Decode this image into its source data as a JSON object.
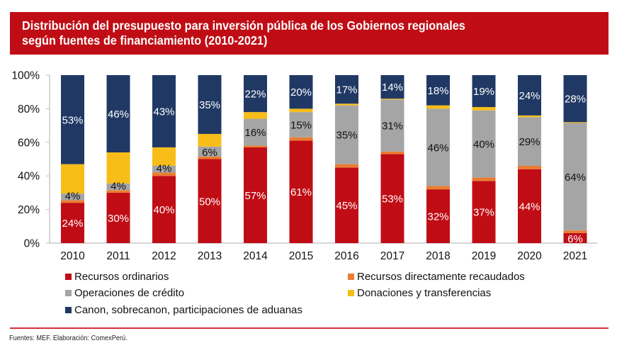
{
  "header": {
    "title_line1": "Distribución del presupuesto para inversión pública de los Gobiernos regionales",
    "title_line2": "según fuentes de financiamiento (2010-2021)"
  },
  "colors": {
    "banner": "#c00d15",
    "rule": "#d3313b"
  },
  "chart_data": {
    "type": "bar",
    "stacked": true,
    "normalized": true,
    "title": "Distribución del presupuesto para inversión pública de los Gobiernos regionales según fuentes de financiamiento (2010-2021)",
    "xlabel": "",
    "ylabel": "",
    "ylim": [
      0,
      100
    ],
    "yticks": [
      "0%",
      "20%",
      "40%",
      "60%",
      "80%",
      "100%"
    ],
    "grid": false,
    "legend_position": "bottom",
    "categories": [
      "2010",
      "2011",
      "2012",
      "2013",
      "2014",
      "2015",
      "2016",
      "2017",
      "2018",
      "2019",
      "2020",
      "2021"
    ],
    "series": [
      {
        "name": "Recursos ordinarios",
        "color": "#c00d15",
        "label_color": "#ffffff",
        "values": [
          24,
          30,
          40,
          50,
          57,
          61,
          45,
          53,
          32,
          37,
          44,
          6
        ],
        "labels": [
          "24%",
          "30%",
          "40%",
          "50%",
          "57%",
          "61%",
          "45%",
          "53%",
          "32%",
          "37%",
          "44%",
          "6%"
        ]
      },
      {
        "name": "Recursos directamente recaudados",
        "color": "#ec7c30",
        "label_color": "#000000",
        "values": [
          1.5,
          1.5,
          2,
          1.5,
          1,
          2,
          2,
          1.5,
          2,
          2,
          2,
          1.5
        ],
        "labels": []
      },
      {
        "name": "Operaciones de crédito",
        "color": "#a5a5a5",
        "label_color": "#111111",
        "values": [
          4,
          4,
          4,
          6,
          16,
          15,
          35,
          31,
          46,
          40,
          29,
          64
        ],
        "labels": [
          "4%",
          "4%",
          "4%",
          "6%",
          "16%",
          "15%",
          "35%",
          "31%",
          "46%",
          "40%",
          "29%",
          "64%"
        ]
      },
      {
        "name": "Donaciones y transferencias",
        "color": "#f8bd19",
        "label_color": "#000000",
        "values": [
          17.5,
          18.5,
          11,
          7.5,
          4,
          2,
          1,
          0.5,
          2,
          2,
          1,
          0.5
        ],
        "labels": []
      },
      {
        "name": "Canon, sobrecanon, participaciones de aduanas",
        "color": "#203864",
        "label_color": "#ffffff",
        "values": [
          53,
          46,
          43,
          35,
          22,
          20,
          17,
          14,
          18,
          19,
          24,
          28
        ],
        "labels": [
          "53%",
          "46%",
          "43%",
          "35%",
          "22%",
          "20%",
          "17%",
          "14%",
          "18%",
          "19%",
          "24%",
          "28%"
        ]
      }
    ]
  },
  "legend": [
    {
      "label": "Recursos ordinarios",
      "color": "#c00d15"
    },
    {
      "label": "Recursos directamente recaudados",
      "color": "#ec7c30"
    },
    {
      "label": "Operaciones de crédito",
      "color": "#a5a5a5"
    },
    {
      "label": "Donaciones y transferencias",
      "color": "#f8bd19"
    },
    {
      "label": "Canon, sobrecanon, participaciones de aduanas",
      "color": "#203864"
    }
  ],
  "footer": {
    "source": "Fuentes: MEF. Elaboración: ComexPerú."
  }
}
